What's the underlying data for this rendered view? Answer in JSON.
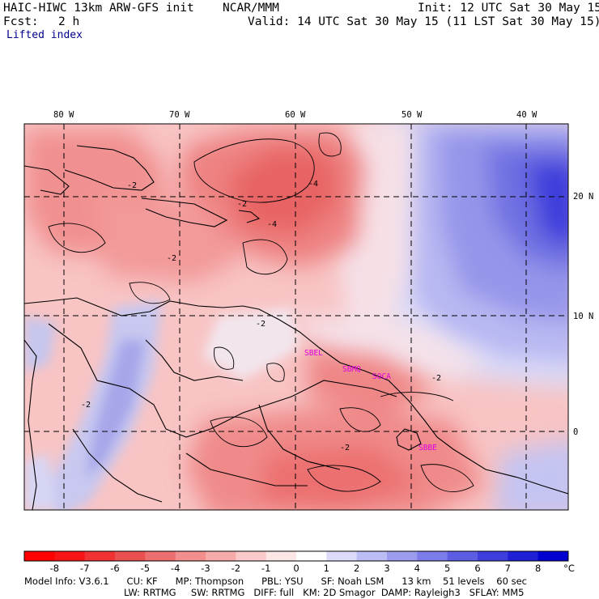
{
  "header": {
    "model": "HAIC-HIWC 13km ARW-GFS init",
    "org": "NCAR/MMM",
    "init": "Init: 12 UTC Sat 30 May 15",
    "fcst_label": "Fcst:",
    "fcst_value": "2 h",
    "valid": "Valid: 14 UTC Sat 30 May 15 (11 LST Sat 30 May 15)",
    "field": "Lifted index"
  },
  "map": {
    "lon_labels": [
      "80 W",
      "70 W",
      "60 W",
      "50 W",
      "40 W"
    ],
    "lat_labels": [
      "20 N",
      "10 N",
      "0"
    ],
    "stations": [
      "SBEL",
      "SBMQ",
      "SOCA",
      "SBBE"
    ],
    "contour_labels": [
      "-2",
      "-2",
      "-2",
      "-4",
      "-4",
      "-2",
      "-2",
      "-2",
      "-2"
    ]
  },
  "colorbar": {
    "labels": [
      "-8",
      "-7",
      "-6",
      "-5",
      "-4",
      "-3",
      "-2",
      "-1",
      "0",
      "1",
      "2",
      "3",
      "4",
      "5",
      "6",
      "7",
      "8"
    ],
    "unit": "°C",
    "colors": [
      "#ff0000",
      "#f71414",
      "#f03232",
      "#ea5050",
      "#ed6e6e",
      "#f38e8e",
      "#f7aaaa",
      "#fac9c9",
      "#fde6e6",
      "#ffffff",
      "#dcdcfa",
      "#bdbdf5",
      "#9c9cef",
      "#7d7de9",
      "#5d5de3",
      "#3e3edc",
      "#1f1fd6",
      "#0000d0"
    ]
  },
  "footer": {
    "line1": "Model Info: V3.6.1      CU: KF      MP: Thompson      PBL: YSU      SF: Noah LSM      13 km    51 levels    60 sec",
    "line2": "LW: RRTMG     SW: RRTMG   DIFF: full   KM: 2D Smagor  DAMP: Rayleigh3   SFLAY: MM5"
  }
}
